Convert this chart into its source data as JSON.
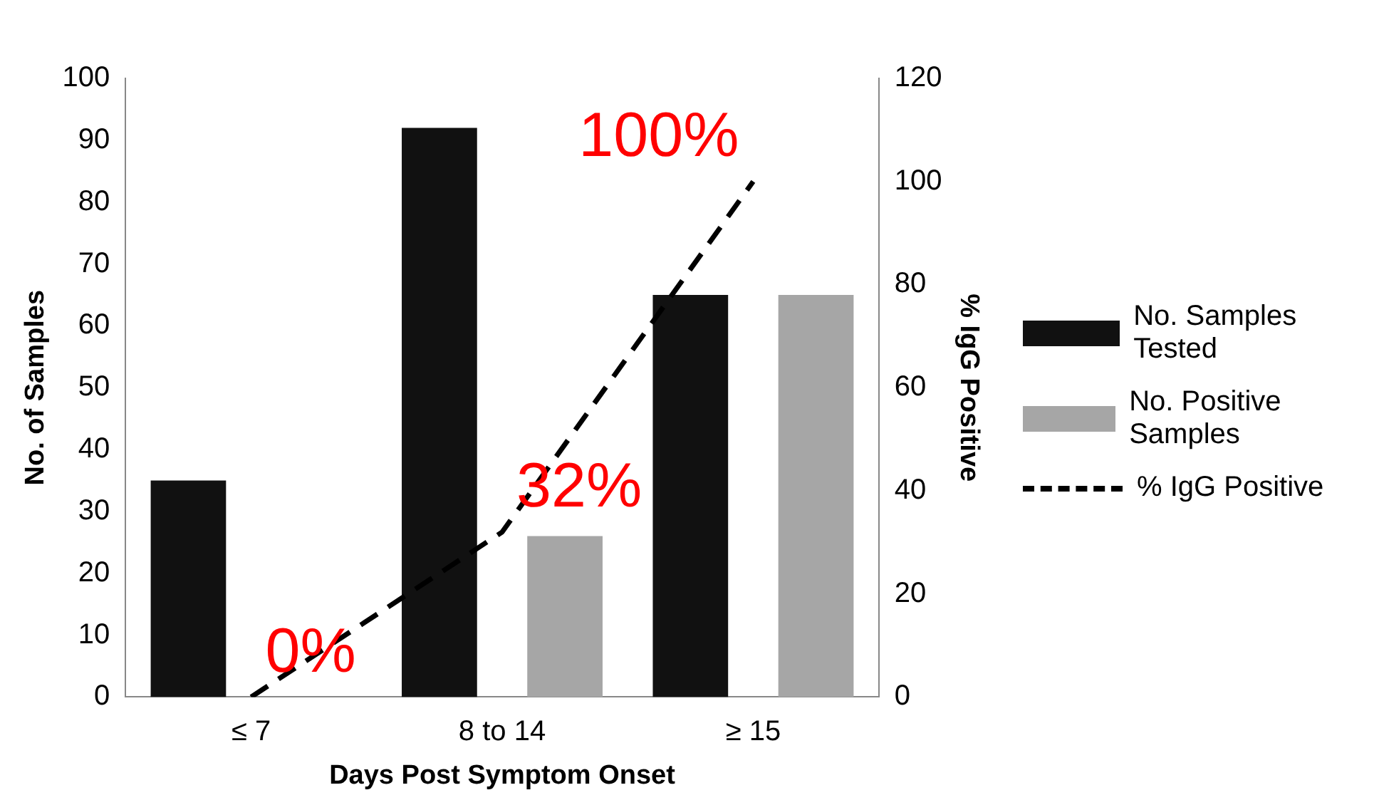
{
  "chart_data": {
    "type": "bar",
    "xlabel": "Days Post Symptom Onset",
    "ylabel": "No. of Samples",
    "y2label": "% IgG Positive",
    "categories": [
      "≤ 7",
      "8 to 14",
      "≥ 15"
    ],
    "series": [
      {
        "name": "No. Samples Tested",
        "color": "#111111",
        "values": [
          35,
          92,
          65
        ]
      },
      {
        "name": "No. Positive Samples",
        "color": "#a6a6a6",
        "values": [
          0,
          26,
          65
        ]
      },
      {
        "name": "% IgG Positive",
        "type": "line",
        "axis": "y2",
        "color": "#000000",
        "line_style": "dashed",
        "marker": "none",
        "values": [
          0,
          32,
          100
        ],
        "value_labels": [
          "0%",
          "32%",
          "100%"
        ]
      }
    ],
    "ylim": [
      0,
      100
    ],
    "yticks": [
      0,
      10,
      20,
      30,
      40,
      50,
      60,
      70,
      80,
      90,
      100
    ],
    "y2lim": [
      0,
      120
    ],
    "y2ticks": [
      0,
      20,
      40,
      60,
      80,
      100,
      120
    ],
    "grid": false,
    "legend": "right"
  }
}
